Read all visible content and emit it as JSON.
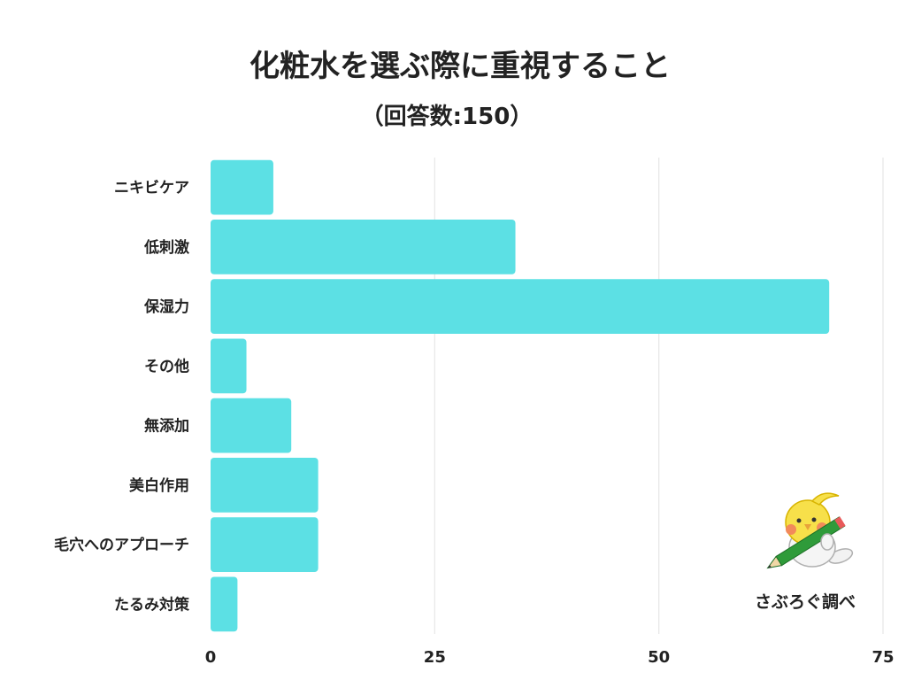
{
  "chart_data": {
    "type": "bar",
    "orientation": "horizontal",
    "title": "化粧水を選ぶ際に重視すること",
    "subtitle": "（回答数:150）",
    "categories": [
      "ニキビケア",
      "低刺激",
      "保湿力",
      "その他",
      "無添加",
      "美白作用",
      "毛穴へのアプローチ",
      "たるみ対策"
    ],
    "values": [
      7,
      34,
      69,
      4,
      9,
      12,
      12,
      3
    ],
    "xlim": [
      0,
      75
    ],
    "xticks": [
      0,
      25,
      50,
      75
    ],
    "grid": true,
    "bar_color": "#5ce0e4",
    "grid_color": "#e6e6e6"
  },
  "watermark": {
    "text": "さぶろぐ調べ",
    "icon": "bird-with-pencil-icon"
  }
}
